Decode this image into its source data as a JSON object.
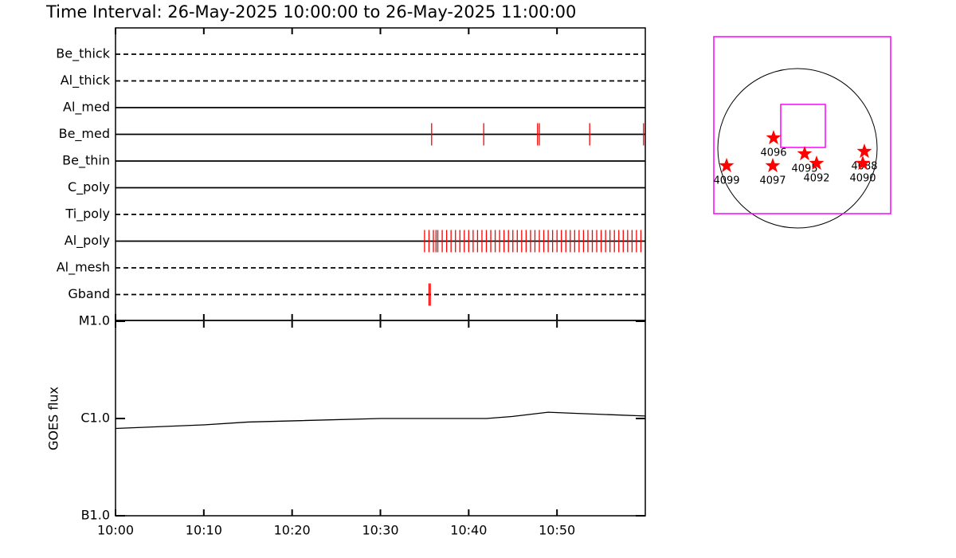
{
  "chart_data": [
    {
      "type": "timeline",
      "title": "Time Interval: 26-May-2025 10:00:00 to 26-May-2025 11:00:00",
      "categories": [
        "Be_thick",
        "Al_thick",
        "Al_med",
        "Be_med",
        "Be_thin",
        "C_poly",
        "Ti_poly",
        "Al_poly",
        "Al_mesh",
        "Gband"
      ],
      "line_styles": [
        "dashed",
        "dashed",
        "solid",
        "solid",
        "solid",
        "solid",
        "dashed",
        "solid",
        "dashed",
        "dashed"
      ],
      "events": [
        [],
        [],
        [],
        [
          35.8,
          41.7,
          47.8,
          48.0,
          53.7,
          59.8
        ],
        [],
        [],
        [],
        [
          35.0,
          35.5,
          36.0,
          36.3,
          36.5,
          37.0,
          37.5,
          38.0,
          38.5,
          39.0,
          39.5,
          40.0,
          40.5,
          41.0,
          41.5,
          42.0,
          42.5,
          43.0,
          43.5,
          44.0,
          44.5,
          45.0,
          45.5,
          46.0,
          46.5,
          47.0,
          47.5,
          48.0,
          48.5,
          49.0,
          49.5,
          50.0,
          50.5,
          51.0,
          51.5,
          52.0,
          52.5,
          53.0,
          53.5,
          54.0,
          54.5,
          55.0,
          55.5,
          56.0,
          56.5,
          57.0,
          57.5,
          58.0,
          58.5,
          59.0,
          59.5
        ],
        [],
        [
          35.5,
          35.65
        ]
      ],
      "color": "#ff0000",
      "xlim": [
        0,
        60
      ],
      "xticks": [
        0,
        10,
        20,
        30,
        40,
        50
      ]
    },
    {
      "type": "line",
      "y_label": "GOES flux",
      "x": [
        0,
        10,
        15,
        30,
        42,
        45,
        49,
        52,
        60
      ],
      "values": [
        7.9e-07,
        8.6e-07,
        9.2e-07,
        1e-06,
        1e-06,
        1.05e-06,
        1.16e-06,
        1.13e-06,
        1.06e-06
      ],
      "color": "#000000",
      "log_scale": true,
      "xlim": [
        0,
        60
      ],
      "xticks": [
        {
          "value": 0,
          "label": "10:00"
        },
        {
          "value": 10,
          "label": "10:10"
        },
        {
          "value": 20,
          "label": "10:20"
        },
        {
          "value": 30,
          "label": "10:30"
        },
        {
          "value": 40,
          "label": "10:40"
        },
        {
          "value": 50,
          "label": "10:50"
        }
      ],
      "ylim": [
        1e-07,
        1e-05
      ],
      "yticks": [
        {
          "value": 1e-07,
          "label": "B1.0"
        },
        {
          "value": 1e-06,
          "label": "C1.0"
        },
        {
          "value": 1e-05,
          "label": "M1.0"
        }
      ]
    },
    {
      "type": "scatter",
      "labels": [
        "4099",
        "4097",
        "4096",
        "4095",
        "4092",
        "4088",
        "4090"
      ],
      "x": [
        -0.89,
        -0.31,
        -0.3,
        0.09,
        0.24,
        0.84,
        0.82
      ],
      "values": [
        -0.22,
        -0.22,
        0.13,
        -0.07,
        -0.19,
        -0.04,
        -0.19
      ],
      "color": "#ff0000",
      "boxes": [
        [
          -1.05,
          1.17,
          -0.82,
          1.4
        ],
        [
          -0.21,
          0.35,
          0.01,
          0.55
        ]
      ],
      "box_color": "#ff00ff"
    }
  ]
}
